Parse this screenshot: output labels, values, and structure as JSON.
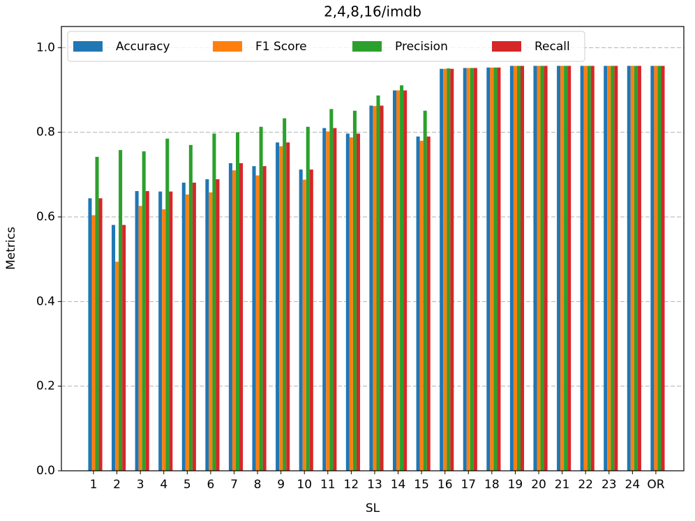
{
  "chart_data": {
    "type": "bar",
    "title": "2,4,8,16/imdb",
    "x_label": "SL",
    "y_label": "Metrics",
    "categories": [
      "1",
      "2",
      "3",
      "4",
      "5",
      "6",
      "7",
      "8",
      "9",
      "10",
      "11",
      "12",
      "13",
      "14",
      "15",
      "16",
      "17",
      "18",
      "19",
      "20",
      "21",
      "22",
      "23",
      "24",
      "OR"
    ],
    "series": [
      {
        "name": "Accuracy",
        "color": "#1f77b4",
        "values": [
          0.644,
          0.581,
          0.661,
          0.66,
          0.681,
          0.689,
          0.727,
          0.72,
          0.776,
          0.712,
          0.81,
          0.797,
          0.863,
          0.899,
          0.79,
          0.95,
          0.952,
          0.953,
          0.957,
          0.957,
          0.957,
          0.957,
          0.957,
          0.957,
          0.957
        ]
      },
      {
        "name": "F1 Score",
        "color": "#ff7f0e",
        "values": [
          0.604,
          0.494,
          0.626,
          0.618,
          0.653,
          0.658,
          0.71,
          0.698,
          0.767,
          0.688,
          0.802,
          0.788,
          0.862,
          0.899,
          0.78,
          0.95,
          0.952,
          0.953,
          0.957,
          0.957,
          0.957,
          0.957,
          0.957,
          0.957,
          0.957
        ]
      },
      {
        "name": "Precision",
        "color": "#2ca02c",
        "values": [
          0.742,
          0.758,
          0.755,
          0.785,
          0.77,
          0.797,
          0.8,
          0.813,
          0.833,
          0.813,
          0.855,
          0.851,
          0.887,
          0.911,
          0.851,
          0.951,
          0.952,
          0.953,
          0.957,
          0.957,
          0.957,
          0.957,
          0.957,
          0.957,
          0.957
        ]
      },
      {
        "name": "Recall",
        "color": "#d62728",
        "values": [
          0.644,
          0.581,
          0.661,
          0.66,
          0.681,
          0.689,
          0.727,
          0.72,
          0.776,
          0.712,
          0.81,
          0.797,
          0.863,
          0.899,
          0.79,
          0.95,
          0.952,
          0.953,
          0.957,
          0.957,
          0.957,
          0.957,
          0.957,
          0.957,
          0.957
        ]
      }
    ],
    "ylim": [
      0,
      1.05
    ],
    "yticks": [
      {
        "value": 0,
        "label": "0.0"
      },
      0.2,
      0.4,
      0.6,
      0.8,
      {
        "value": 1,
        "label": "1.0"
      }
    ],
    "grid": true,
    "legend": "upper left"
  }
}
